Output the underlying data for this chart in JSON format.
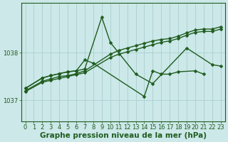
{
  "title": "Graphe pression niveau de la mer (hPa)",
  "bg_color": "#cce8e8",
  "grid_color": "#aacfcf",
  "line_color": "#1e5c1e",
  "xlim": [
    -0.5,
    23.5
  ],
  "ylim": [
    1036.55,
    1039.05
  ],
  "yticks": [
    1037,
    1038
  ],
  "xticks": [
    0,
    1,
    2,
    3,
    4,
    5,
    6,
    7,
    8,
    9,
    10,
    11,
    12,
    13,
    14,
    15,
    16,
    17,
    18,
    19,
    20,
    21,
    22,
    23
  ],
  "series": {
    "s1": [
      1037.25,
      null,
      1037.47,
      1037.52,
      1037.56,
      1037.6,
      1037.62,
      1037.66,
      null,
      1038.75,
      1038.22,
      null,
      null,
      1037.55,
      null,
      1037.35,
      null,
      null,
      null,
      1038.1,
      null,
      null,
      1037.75,
      1037.72
    ],
    "s2": [
      1037.25,
      null,
      1037.47,
      1037.52,
      1037.56,
      1037.6,
      1037.62,
      1037.85,
      1037.78,
      null,
      null,
      null,
      null,
      null,
      1037.08,
      1037.62,
      1037.55,
      1037.55,
      1037.6,
      null,
      1037.62,
      1037.55,
      null,
      null
    ],
    "s3": [
      1037.2,
      null,
      1037.4,
      1037.45,
      1037.5,
      1037.52,
      1037.56,
      1037.62,
      null,
      null,
      1037.97,
      1038.05,
      1038.1,
      1038.15,
      1038.2,
      1038.25,
      1038.28,
      1038.3,
      1038.35,
      1038.42,
      1038.48,
      1038.5,
      1038.5,
      1038.55
    ],
    "s4": [
      1037.18,
      null,
      1037.38,
      1037.42,
      1037.46,
      1037.5,
      1037.54,
      1037.58,
      null,
      null,
      1037.9,
      1037.97,
      1038.02,
      1038.07,
      1038.12,
      1038.17,
      1038.22,
      1038.25,
      1038.3,
      1038.37,
      1038.43,
      1038.45,
      1038.45,
      1038.5
    ]
  },
  "marker_size": 2.5,
  "line_width": 1.0,
  "title_fontsize": 7.5,
  "tick_fontsize": 6.0
}
